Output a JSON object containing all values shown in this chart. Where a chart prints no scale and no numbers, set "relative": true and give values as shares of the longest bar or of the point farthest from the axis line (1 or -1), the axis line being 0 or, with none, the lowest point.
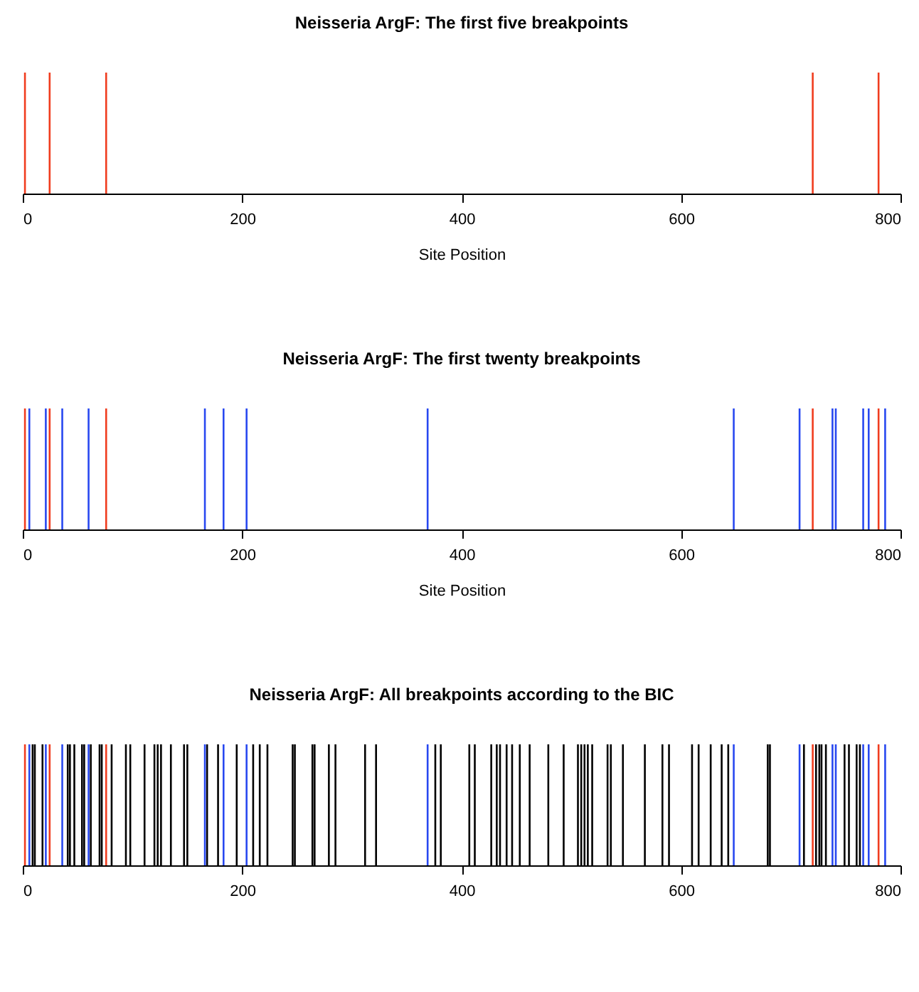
{
  "chart_data": [
    {
      "type": "bar",
      "relative": true,
      "title": "Neisseria ArgF: The first five breakpoints",
      "xlabel": "Site Position",
      "xlim": [
        0,
        800
      ],
      "xticks": [
        0,
        200,
        400,
        600,
        800
      ],
      "series": [
        {
          "color": "#f03c1e",
          "x": [
            2,
            24.5,
            76,
            720,
            780
          ],
          "values": [
            1,
            1,
            1,
            1,
            1
          ]
        }
      ]
    },
    {
      "type": "bar",
      "relative": true,
      "title": "Neisseria ArgF: The first twenty breakpoints",
      "xlabel": "Site Position",
      "xlim": [
        0,
        800
      ],
      "xticks": [
        0,
        200,
        400,
        600,
        800
      ],
      "series": [
        {
          "color": "#f03c1e",
          "x": [
            2,
            24.5,
            76,
            720,
            780
          ],
          "values": [
            1,
            1,
            1,
            1,
            1
          ]
        },
        {
          "color": "#2848f0",
          "x": [
            6,
            21,
            36,
            60,
            166,
            183,
            204,
            369,
            648,
            708,
            738,
            741,
            766,
            771,
            786
          ],
          "values": [
            1,
            1,
            1,
            1,
            1,
            1,
            1,
            1,
            1,
            1,
            1,
            1,
            1,
            1,
            1
          ]
        }
      ]
    },
    {
      "type": "bar",
      "relative": true,
      "title": "Neisseria ArgF: All breakpoints according to the BIC",
      "xlim": [
        0,
        800
      ],
      "xticks": [
        0,
        200,
        400,
        600,
        800
      ],
      "series": [
        {
          "color": "#000000",
          "x": [
            9,
            11,
            18,
            41,
            43,
            47,
            54,
            56,
            62,
            70,
            72,
            81,
            94,
            98,
            111,
            120,
            123,
            126,
            135,
            147,
            150,
            168,
            178,
            195,
            210,
            216,
            223,
            246,
            248,
            264,
            266,
            279,
            285,
            312,
            322,
            376,
            381,
            407,
            412,
            427,
            432,
            435,
            441,
            446,
            453,
            462,
            479,
            493,
            506,
            509,
            512,
            515,
            519,
            533,
            536,
            547,
            567,
            583,
            589,
            610,
            616,
            627,
            637,
            643,
            679,
            681,
            712,
            723,
            726,
            728,
            732,
            749,
            753,
            760,
            763
          ],
          "values": [
            1,
            1,
            1,
            1,
            1,
            1,
            1,
            1,
            1,
            1,
            1,
            1,
            1,
            1,
            1,
            1,
            1,
            1,
            1,
            1,
            1,
            1,
            1,
            1,
            1,
            1,
            1,
            1,
            1,
            1,
            1,
            1,
            1,
            1,
            1,
            1,
            1,
            1,
            1,
            1,
            1,
            1,
            1,
            1,
            1,
            1,
            1,
            1,
            1,
            1,
            1,
            1,
            1,
            1,
            1,
            1,
            1,
            1,
            1,
            1,
            1,
            1,
            1,
            1,
            1,
            1,
            1,
            1,
            1,
            1,
            1,
            1,
            1,
            1,
            1
          ]
        },
        {
          "color": "#f03c1e",
          "x": [
            2,
            24.5,
            76,
            720,
            780
          ],
          "values": [
            1,
            1,
            1,
            1,
            1
          ]
        },
        {
          "color": "#2848f0",
          "x": [
            6,
            21,
            36,
            60,
            166,
            183,
            204,
            369,
            648,
            708,
            738,
            741,
            766,
            771,
            786
          ],
          "values": [
            1,
            1,
            1,
            1,
            1,
            1,
            1,
            1,
            1,
            1,
            1,
            1,
            1,
            1,
            1
          ]
        }
      ]
    }
  ]
}
